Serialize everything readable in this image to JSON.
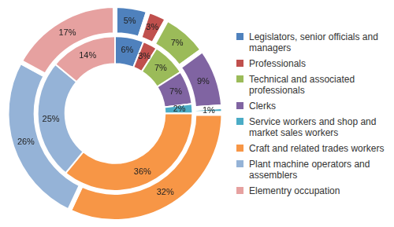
{
  "chart_data": {
    "type": "doughnut",
    "categories": [
      "Legislators, senior officials and managers",
      "Professionals",
      "Technical and associated professionals",
      "Clerks",
      "Service workers and shop and market sales workers",
      "Craft and related trades workers",
      "Plant machine operators and assemblers",
      "Elementry occupation"
    ],
    "colors": [
      "#4f81bd",
      "#c0504d",
      "#9bbb59",
      "#8064a2",
      "#4bacc6",
      "#f79646",
      "#95b3d7",
      "#e6a1a0"
    ],
    "series": [
      {
        "values": [
          5,
          3,
          7,
          9,
          1,
          32,
          26,
          17
        ],
        "value_labels": [
          "5%",
          "3%",
          "7%",
          "9%",
          "1%",
          "32%",
          "26%",
          "17%"
        ]
      },
      {
        "values": [
          6,
          3,
          7,
          7,
          2,
          36,
          25,
          14
        ],
        "value_labels": [
          "6%",
          "3%",
          "7%",
          "7%",
          "2%",
          "36%",
          "25%",
          "14%"
        ]
      }
    ],
    "legend": "right",
    "data_labels": true
  }
}
